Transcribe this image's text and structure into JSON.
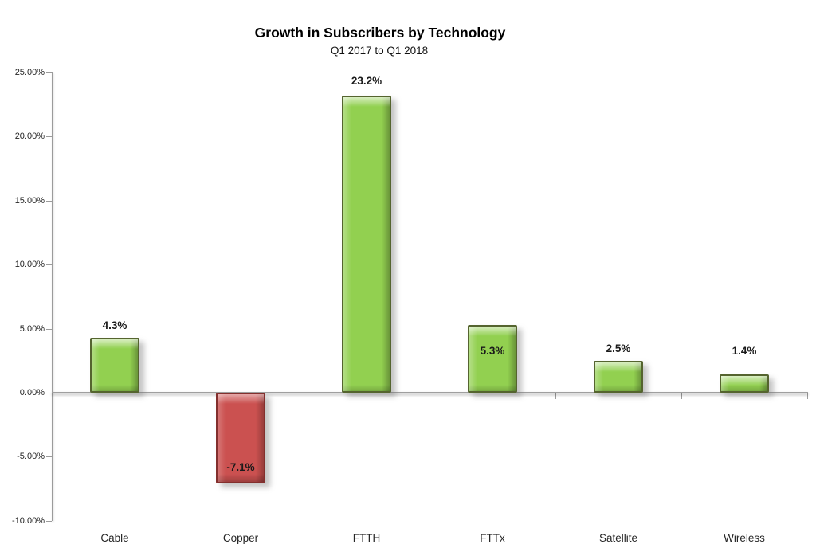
{
  "chart_data": {
    "type": "bar",
    "title": "Growth in Subscribers by Technology",
    "subtitle": "Q1 2017 to Q1 2018",
    "categories": [
      "Cable",
      "Copper",
      "FTTH",
      "FTTx",
      "Satellite",
      "Wireless"
    ],
    "values": [
      4.3,
      -7.1,
      23.2,
      5.3,
      2.5,
      1.4
    ],
    "data_labels": [
      "4.3%",
      "-7.1%",
      "23.2%",
      "5.3%",
      "2.5%",
      "1.4%"
    ],
    "label_anchor_values": [
      5.2,
      -5.85,
      24.3,
      3.25,
      3.4,
      3.25
    ],
    "ylim": [
      -10,
      25
    ],
    "yticks": [
      {
        "value": 25,
        "label": "25.00%"
      },
      {
        "value": 20,
        "label": "20.00%"
      },
      {
        "value": 15,
        "label": "15.00%"
      },
      {
        "value": 10,
        "label": "10.00%"
      },
      {
        "value": 5,
        "label": "5.00%"
      },
      {
        "value": 0,
        "label": "0.00%"
      },
      {
        "value": -5,
        "label": "-5.00%"
      },
      {
        "value": -10,
        "label": "-10.00%"
      }
    ],
    "xlabel": "",
    "ylabel": "",
    "grid": false,
    "legend": false,
    "colors": {
      "positive_fill": "#92d050",
      "positive_border": "#55642f",
      "negative_fill": "#cb5150",
      "negative_border": "#832f2d",
      "axis_line": "#9b9b9b",
      "tick_label_text": "#262626",
      "data_label_text": "#1a1a1a",
      "title_text": "#000000",
      "background": "#ffffff"
    }
  }
}
